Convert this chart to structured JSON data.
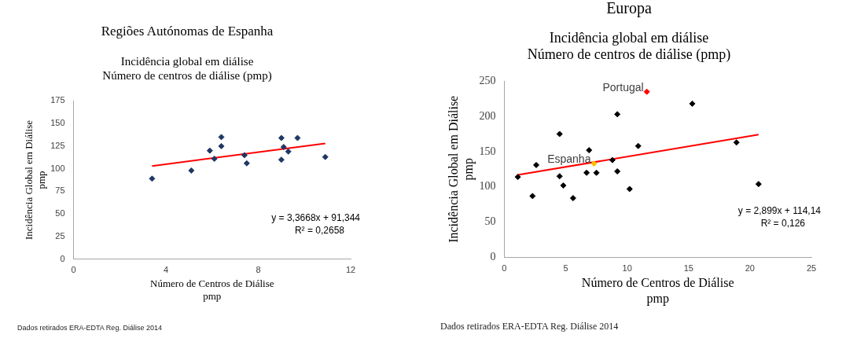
{
  "chart_data": [
    {
      "type": "scatter",
      "title": "Regiões Autónomas de Espanha",
      "subtitle": "Incidência global em diálise\nNúmero de centros de diálise (pmp)",
      "xlabel": "Número de Centros de Diálise\npmp",
      "ylabel": "Incidência Global em Diálise\npmp",
      "marker": "diamond",
      "legend": false,
      "xlim": [
        0,
        12
      ],
      "xticks": [
        0,
        4,
        8,
        12
      ],
      "ylim": [
        0,
        175
      ],
      "yticks": [
        0,
        25,
        50,
        75,
        100,
        125,
        150,
        175
      ],
      "series": [
        {
          "color": "#1f3864",
          "x": [
            3.4,
            5.1,
            5.9,
            6.1,
            6.4,
            6.4,
            7.4,
            7.5,
            9.0,
            9.0,
            9.1,
            9.3,
            9.7,
            10.9
          ],
          "values": [
            89,
            98,
            120,
            111,
            135,
            125,
            115,
            106,
            134,
            110,
            124,
            119,
            134,
            113
          ]
        },
        {
          "type": "line",
          "color": "#ff0000",
          "marker": "none",
          "x": [
            3.4,
            10.9
          ],
          "values": [
            103,
            128
          ]
        }
      ],
      "annotations": [
        "y = 3,3668x + 91,344",
        "R² = 0,2658",
        "Dados retirados ERA-EDTA Reg. Diálise 2014"
      ]
    },
    {
      "type": "scatter",
      "title": "Europa",
      "subtitle": "Incidência global em diálise\nNúmero de centros de diálise (pmp)",
      "xlabel": "Número de Centros de Diálise\npmp",
      "ylabel": "Incidência Global em Diálise\npmp",
      "marker": "diamond",
      "legend": false,
      "xlim": [
        0,
        25
      ],
      "xticks": [
        0,
        5,
        10,
        15,
        20,
        25
      ],
      "ylim": [
        0,
        250
      ],
      "yticks": [
        0,
        50,
        100,
        150,
        200,
        250
      ],
      "series": [
        {
          "color": "#000000",
          "x": [
            1.1,
            2.3,
            2.6,
            4.5,
            4.5,
            4.8,
            5.6,
            6.7,
            6.9,
            7.5,
            8.8,
            9.2,
            9.2,
            10.2,
            10.9,
            15.3,
            18.9,
            20.7
          ],
          "values": [
            114,
            87,
            131,
            175,
            115,
            102,
            84,
            120,
            152,
            120,
            138,
            203,
            122,
            97,
            158,
            218,
            163,
            104
          ]
        },
        {
          "name": "Espanha",
          "color": "#ffc000",
          "x": [
            7.3
          ],
          "values": [
            133
          ]
        },
        {
          "name": "Portugal",
          "color": "#ff0000",
          "x": [
            11.6
          ],
          "values": [
            235
          ]
        },
        {
          "type": "line",
          "color": "#ff0000",
          "marker": "none",
          "x": [
            1.1,
            20.7
          ],
          "values": [
            117,
            174
          ]
        }
      ],
      "annotations": [
        "y = 2,899x + 114,14",
        "R² = 0,126",
        "Dados retirados ERA-EDTA Reg. Diálise 2014"
      ]
    }
  ]
}
